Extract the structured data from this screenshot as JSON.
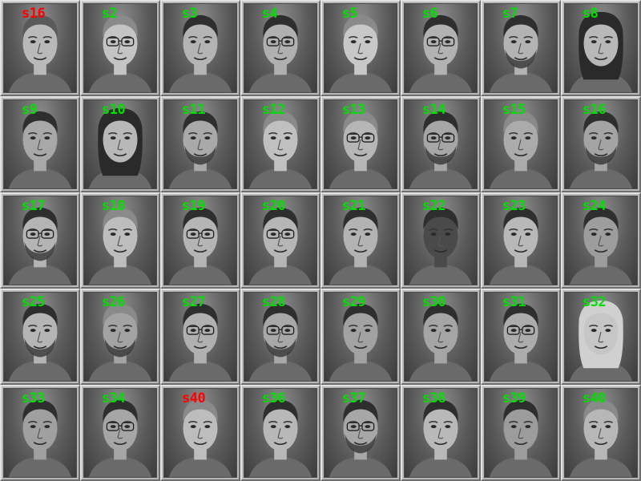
{
  "colors": {
    "match": "#00e000",
    "mismatch": "#ff0000"
  },
  "faces": [
    {
      "label": "s16",
      "status": "mismatch",
      "hair": "short",
      "glasses": false,
      "beard": false,
      "tone": "#b9b9b9"
    },
    {
      "label": "s2",
      "status": "match",
      "hair": "light",
      "glasses": true,
      "beard": false,
      "tone": "#c4c4c4"
    },
    {
      "label": "s3",
      "status": "match",
      "hair": "dark",
      "glasses": false,
      "beard": false,
      "tone": "#b4b4b4"
    },
    {
      "label": "s4",
      "status": "match",
      "hair": "dark",
      "glasses": true,
      "beard": false,
      "tone": "#b0b0b0"
    },
    {
      "label": "s5",
      "status": "match",
      "hair": "light",
      "glasses": false,
      "beard": false,
      "tone": "#c8c8c8"
    },
    {
      "label": "s6",
      "status": "match",
      "hair": "dark",
      "glasses": true,
      "beard": false,
      "tone": "#b2b2b2"
    },
    {
      "label": "s7",
      "status": "match",
      "hair": "dark",
      "glasses": false,
      "beard": true,
      "tone": "#b3b3b3"
    },
    {
      "label": "s8",
      "status": "match",
      "hair": "long",
      "glasses": false,
      "beard": false,
      "tone": "#b8b8b8"
    },
    {
      "label": "s9",
      "status": "match",
      "hair": "dark",
      "glasses": false,
      "beard": false,
      "tone": "#a8a8a8"
    },
    {
      "label": "s10",
      "status": "match",
      "hair": "long",
      "glasses": false,
      "beard": false,
      "tone": "#b8b8b8"
    },
    {
      "label": "s11",
      "status": "match",
      "hair": "dark",
      "glasses": false,
      "beard": true,
      "tone": "#a9a9a9"
    },
    {
      "label": "s12",
      "status": "match",
      "hair": "light",
      "glasses": false,
      "beard": false,
      "tone": "#c0c0c0"
    },
    {
      "label": "s13",
      "status": "match",
      "hair": "light",
      "glasses": true,
      "beard": false,
      "tone": "#b6b6b6"
    },
    {
      "label": "s14",
      "status": "match",
      "hair": "dark",
      "glasses": true,
      "beard": true,
      "tone": "#a6a6a6"
    },
    {
      "label": "s15",
      "status": "match",
      "hair": "light",
      "glasses": false,
      "beard": false,
      "tone": "#ababab"
    },
    {
      "label": "s16",
      "status": "match",
      "hair": "dark",
      "glasses": false,
      "beard": true,
      "tone": "#a4a4a4"
    },
    {
      "label": "s17",
      "status": "match",
      "hair": "dark",
      "glasses": true,
      "beard": true,
      "tone": "#b4b4b4"
    },
    {
      "label": "s18",
      "status": "match",
      "hair": "light",
      "glasses": false,
      "beard": false,
      "tone": "#bdbdbd"
    },
    {
      "label": "s19",
      "status": "match",
      "hair": "dark",
      "glasses": true,
      "beard": false,
      "tone": "#b5b5b5"
    },
    {
      "label": "s20",
      "status": "match",
      "hair": "dark",
      "glasses": true,
      "beard": false,
      "tone": "#b6b6b6"
    },
    {
      "label": "s21",
      "status": "match",
      "hair": "dark",
      "glasses": false,
      "beard": false,
      "tone": "#b3b3b3"
    },
    {
      "label": "s22",
      "status": "match",
      "hair": "dark",
      "glasses": false,
      "beard": false,
      "tone": "#4a4a4a"
    },
    {
      "label": "s23",
      "status": "match",
      "hair": "dark",
      "glasses": false,
      "beard": false,
      "tone": "#b8b8b8"
    },
    {
      "label": "s24",
      "status": "match",
      "hair": "dark",
      "glasses": false,
      "beard": false,
      "tone": "#9d9d9d"
    },
    {
      "label": "s25",
      "status": "match",
      "hair": "dark",
      "glasses": false,
      "beard": true,
      "tone": "#b5b5b5"
    },
    {
      "label": "s26",
      "status": "match",
      "hair": "light",
      "glasses": false,
      "beard": true,
      "tone": "#a3a3a3"
    },
    {
      "label": "s27",
      "status": "match",
      "hair": "dark",
      "glasses": true,
      "beard": false,
      "tone": "#b0b0b0"
    },
    {
      "label": "s28",
      "status": "match",
      "hair": "dark",
      "glasses": true,
      "beard": true,
      "tone": "#a8a8a8"
    },
    {
      "label": "s29",
      "status": "match",
      "hair": "dark",
      "glasses": false,
      "beard": false,
      "tone": "#a2a2a2"
    },
    {
      "label": "s30",
      "status": "match",
      "hair": "dark",
      "glasses": false,
      "beard": false,
      "tone": "#a5a5a5"
    },
    {
      "label": "s31",
      "status": "match",
      "hair": "dark",
      "glasses": true,
      "beard": false,
      "tone": "#acacac"
    },
    {
      "label": "s32",
      "status": "match",
      "hair": "white",
      "glasses": false,
      "beard": false,
      "tone": "#c6c6c6"
    },
    {
      "label": "s33",
      "status": "match",
      "hair": "dark",
      "glasses": false,
      "beard": false,
      "tone": "#a0a0a0"
    },
    {
      "label": "s34",
      "status": "match",
      "hair": "dark",
      "glasses": true,
      "beard": false,
      "tone": "#a6a6a6"
    },
    {
      "label": "s40",
      "status": "mismatch",
      "hair": "light",
      "glasses": false,
      "beard": false,
      "tone": "#bdbdbd"
    },
    {
      "label": "s36",
      "status": "match",
      "hair": "dark",
      "glasses": false,
      "beard": false,
      "tone": "#b8b8b8"
    },
    {
      "label": "s37",
      "status": "match",
      "hair": "dark",
      "glasses": true,
      "beard": true,
      "tone": "#a7a7a7"
    },
    {
      "label": "s38",
      "status": "match",
      "hair": "dark",
      "glasses": false,
      "beard": false,
      "tone": "#b9b9b9"
    },
    {
      "label": "s39",
      "status": "match",
      "hair": "dark",
      "glasses": false,
      "beard": false,
      "tone": "#9c9c9c"
    },
    {
      "label": "s40",
      "status": "match",
      "hair": "light",
      "glasses": false,
      "beard": false,
      "tone": "#b7b7b7"
    }
  ]
}
